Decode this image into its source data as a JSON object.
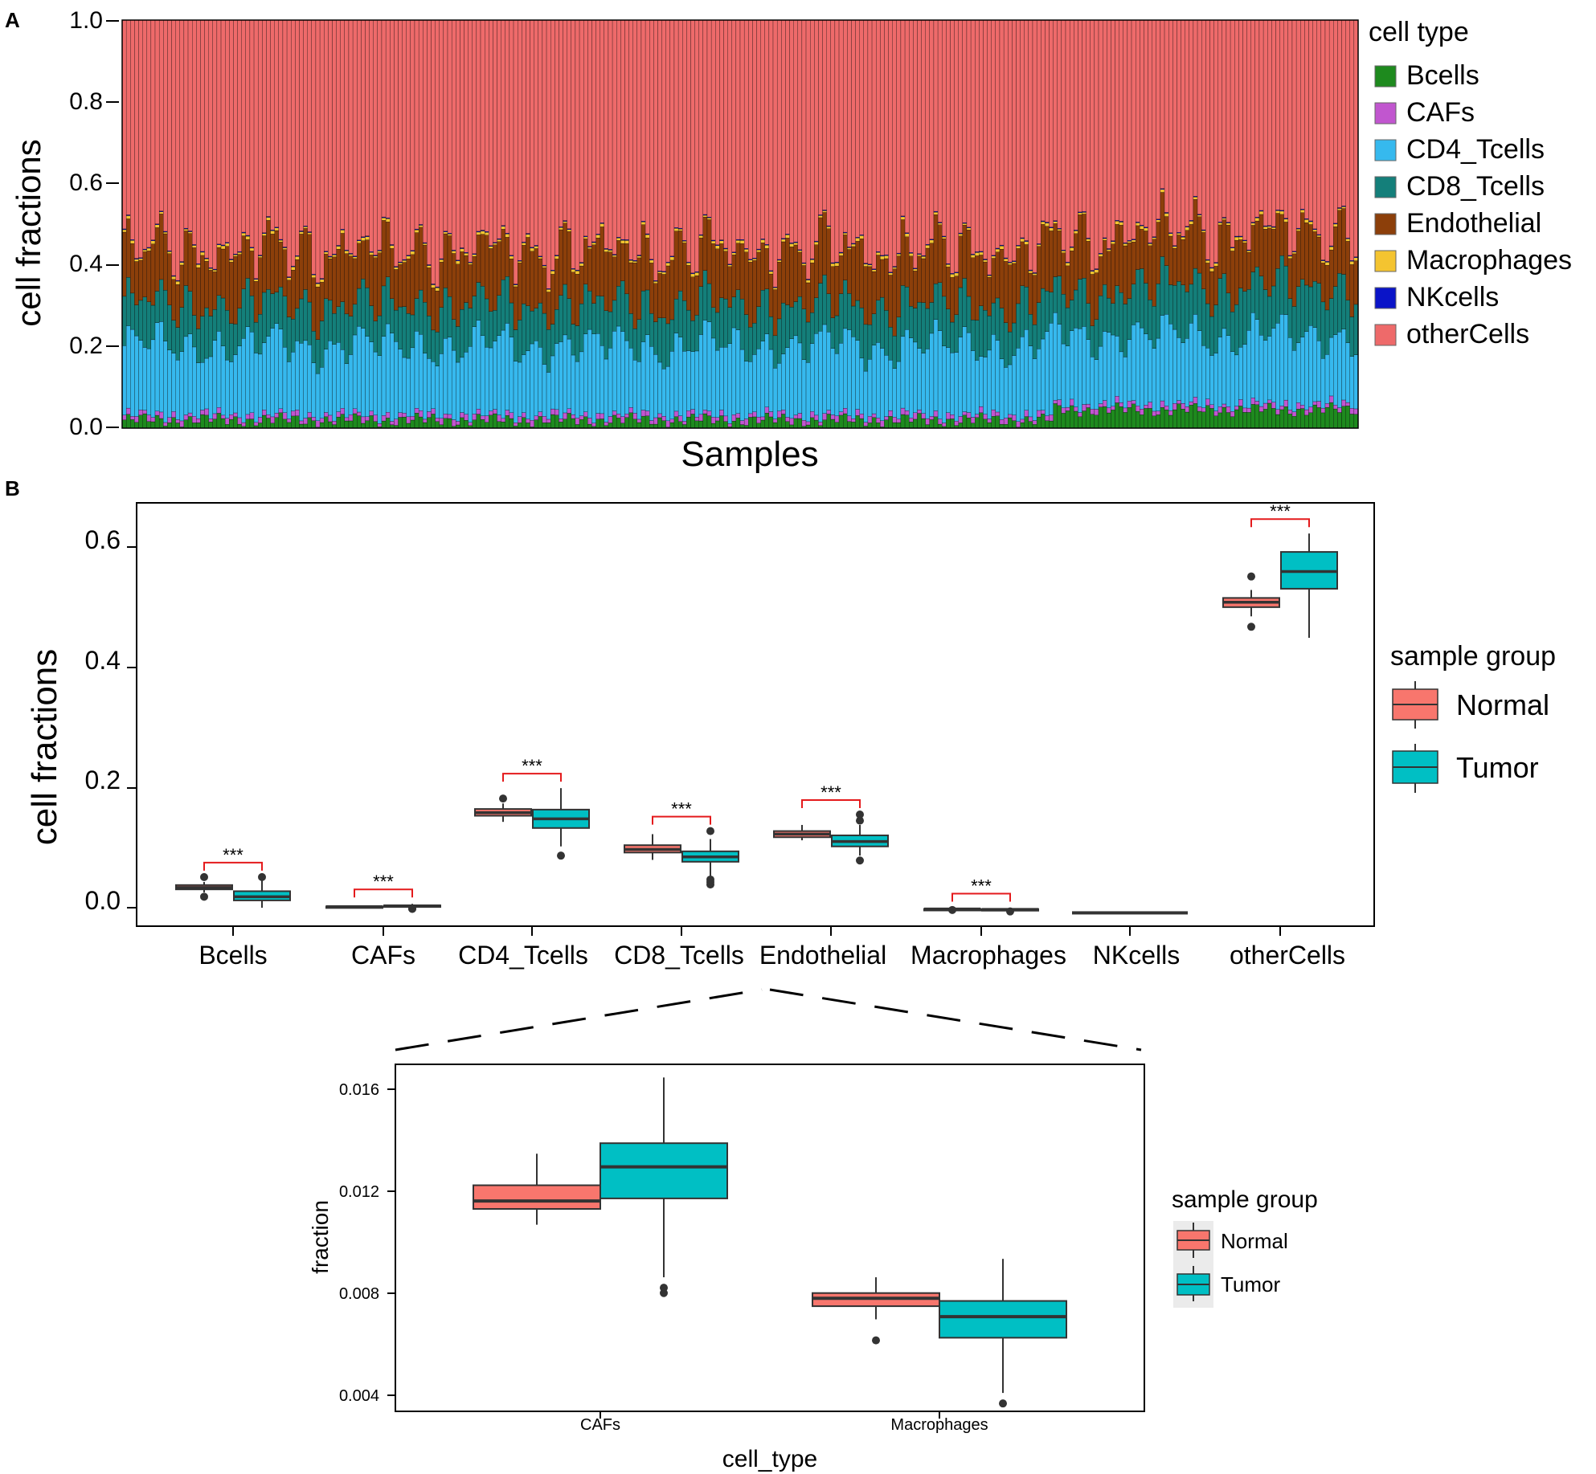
{
  "colors": {
    "Bcells": "#1e8a1e",
    "CAFs": "#c156cf",
    "CD4_Tcells": "#36b9ee",
    "CD8_Tcells": "#147f7a",
    "Endothelial": "#8c3f0a",
    "Macrophages": "#f4c430",
    "NKcells": "#0a14c8",
    "otherCells": "#ee6a6a",
    "Normal": "#f8766d",
    "Tumor": "#00bfc4",
    "signif": "#e41a1c"
  },
  "chart_data": [
    {
      "panel": "A",
      "type": "bar",
      "stacked": true,
      "ylabel": "cell fractions",
      "xlabel": "Samples",
      "ylim": [
        0,
        1
      ],
      "yticks": [
        "0.0",
        "0.2",
        "0.4",
        "0.6",
        "0.8",
        "1.0"
      ],
      "legend_title": "cell type",
      "legend_position": "right",
      "n_samples": 300,
      "series_mean_values": [
        {
          "name": "Bcells",
          "value": 0.035
        },
        {
          "name": "CAFs",
          "value": 0.013
        },
        {
          "name": "CD4_Tcells",
          "value": 0.165
        },
        {
          "name": "CD8_Tcells",
          "value": 0.097
        },
        {
          "name": "Endothelial",
          "value": 0.127
        },
        {
          "name": "Macrophages",
          "value": 0.008
        },
        {
          "name": "NKcells",
          "value": 0.002
        },
        {
          "name": "otherCells",
          "value": 0.553
        }
      ]
    },
    {
      "panel": "B",
      "type": "box",
      "ylabel": "cell fractions",
      "ylim": [
        -0.02,
        0.67
      ],
      "yticks": [
        "0.0",
        "0.2",
        "0.4",
        "0.6"
      ],
      "categories": [
        "Bcells",
        "CAFs",
        "CD4_Tcells",
        "CD8_Tcells",
        "Endothelial",
        "Macrophages",
        "NKcells",
        "otherCells"
      ],
      "legend_title": "sample group",
      "legend_position": "right",
      "legend_entries": [
        "Normal",
        "Tumor"
      ],
      "significance_label": "***",
      "significant_categories": [
        "Bcells",
        "CAFs",
        "CD4_Tcells",
        "CD8_Tcells",
        "Endothelial",
        "Macrophages",
        "otherCells"
      ],
      "series": [
        {
          "name": "Normal",
          "boxes": [
            {
              "min": 0.035,
              "q1": 0.04,
              "median": 0.043,
              "q3": 0.047,
              "max": 0.052,
              "outliers": [
                0.028,
                0.06
              ]
            },
            {
              "min": 0.0108,
              "q1": 0.0114,
              "median": 0.0117,
              "q3": 0.0123,
              "max": 0.0135,
              "outliers": []
            },
            {
              "min": 0.15,
              "q1": 0.16,
              "median": 0.165,
              "q3": 0.171,
              "max": 0.18,
              "outliers": [
                0.188
              ]
            },
            {
              "min": 0.088,
              "q1": 0.1,
              "median": 0.105,
              "q3": 0.112,
              "max": 0.13,
              "outliers": []
            },
            {
              "min": 0.12,
              "q1": 0.125,
              "median": 0.13,
              "q3": 0.135,
              "max": 0.145,
              "outliers": []
            },
            {
              "min": 0.0072,
              "q1": 0.0077,
              "median": 0.008,
              "q3": 0.0082,
              "max": 0.0088,
              "outliers": [
                0.0064
              ]
            },
            {
              "min": 0.001,
              "q1": 0.002,
              "median": 0.002,
              "q3": 0.003,
              "max": 0.003,
              "outliers": []
            },
            {
              "min": 0.485,
              "q1": 0.5,
              "median": 0.508,
              "q3": 0.515,
              "max": 0.528,
              "outliers": [
                0.468,
                0.55
              ]
            }
          ]
        },
        {
          "name": "Tumor",
          "boxes": [
            {
              "min": 0.01,
              "q1": 0.022,
              "median": 0.028,
              "q3": 0.037,
              "max": 0.055,
              "outliers": [
                0.06
              ]
            },
            {
              "min": 0.0088,
              "q1": 0.0118,
              "median": 0.013,
              "q3": 0.0139,
              "max": 0.0164,
              "outliers": [
                0.0082,
                0.0084
              ]
            },
            {
              "min": 0.11,
              "q1": 0.14,
              "median": 0.155,
              "q3": 0.17,
              "max": 0.205,
              "outliers": [
                0.095
              ]
            },
            {
              "min": 0.062,
              "q1": 0.085,
              "median": 0.093,
              "q3": 0.102,
              "max": 0.122,
              "outliers": [
                0.048,
                0.052,
                0.056,
                0.135
              ]
            },
            {
              "min": 0.095,
              "q1": 0.11,
              "median": 0.118,
              "q3": 0.128,
              "max": 0.145,
              "outliers": [
                0.087,
                0.152,
                0.162
              ]
            },
            {
              "min": 0.0044,
              "q1": 0.0065,
              "median": 0.0073,
              "q3": 0.0079,
              "max": 0.0095,
              "outliers": [
                0.004
              ]
            },
            {
              "min": 0.001,
              "q1": 0.002,
              "median": 0.002,
              "q3": 0.003,
              "max": 0.003,
              "outliers": []
            },
            {
              "min": 0.45,
              "q1": 0.53,
              "median": 0.558,
              "q3": 0.59,
              "max": 0.62,
              "outliers": []
            }
          ]
        }
      ]
    },
    {
      "panel": "B-inset",
      "type": "box",
      "xlabel": "cell_type",
      "ylabel": "fraction",
      "ylim": [
        0.0037,
        0.0169
      ],
      "yticks": [
        "0.004",
        "0.008",
        "0.012",
        "0.016"
      ],
      "categories": [
        "CAFs",
        "Macrophages"
      ],
      "legend_title": "sample group",
      "legend_position": "right",
      "legend_entries": [
        "Normal",
        "Tumor"
      ],
      "series": [
        {
          "name": "Normal",
          "boxes": [
            {
              "min": 0.0108,
              "q1": 0.0114,
              "median": 0.0117,
              "q3": 0.0123,
              "max": 0.0135,
              "outliers": []
            },
            {
              "min": 0.0072,
              "q1": 0.0077,
              "median": 0.008,
              "q3": 0.0082,
              "max": 0.0088,
              "outliers": [
                0.0064
              ]
            }
          ]
        },
        {
          "name": "Tumor",
          "boxes": [
            {
              "min": 0.0088,
              "q1": 0.0118,
              "median": 0.013,
              "q3": 0.0139,
              "max": 0.0164,
              "outliers": [
                0.0082,
                0.0084
              ]
            },
            {
              "min": 0.0044,
              "q1": 0.0065,
              "median": 0.0073,
              "q3": 0.0079,
              "max": 0.0095,
              "outliers": [
                0.004
              ]
            }
          ]
        }
      ]
    }
  ],
  "panel_labels": {
    "a": "A",
    "b": "B"
  },
  "panelA": {
    "ylabel": "cell fractions",
    "xlabel": "Samples",
    "yticks": [
      "0.0",
      "0.2",
      "0.4",
      "0.6",
      "0.8",
      "1.0"
    ],
    "legend_title": "cell type",
    "legend_items": [
      "Bcells",
      "CAFs",
      "CD4_Tcells",
      "CD8_Tcells",
      "Endothelial",
      "Macrophages",
      "NKcells",
      "otherCells"
    ]
  },
  "panelB": {
    "ylabel": "cell fractions",
    "yticks": [
      "0.0",
      "0.2",
      "0.4",
      "0.6"
    ],
    "categories": [
      "Bcells",
      "CAFs",
      "CD4_Tcells",
      "CD8_Tcells",
      "Endothelial",
      "Macrophages",
      "NKcells",
      "otherCells"
    ],
    "legend_title": "sample group",
    "legend_items": [
      "Normal",
      "Tumor"
    ]
  },
  "inset": {
    "xlabel": "cell_type",
    "ylabel": "fraction",
    "yticks": [
      "0.004",
      "0.008",
      "0.012",
      "0.016"
    ],
    "categories": [
      "CAFs",
      "Macrophages"
    ],
    "legend_title": "sample group",
    "legend_items": [
      "Normal",
      "Tumor"
    ]
  }
}
